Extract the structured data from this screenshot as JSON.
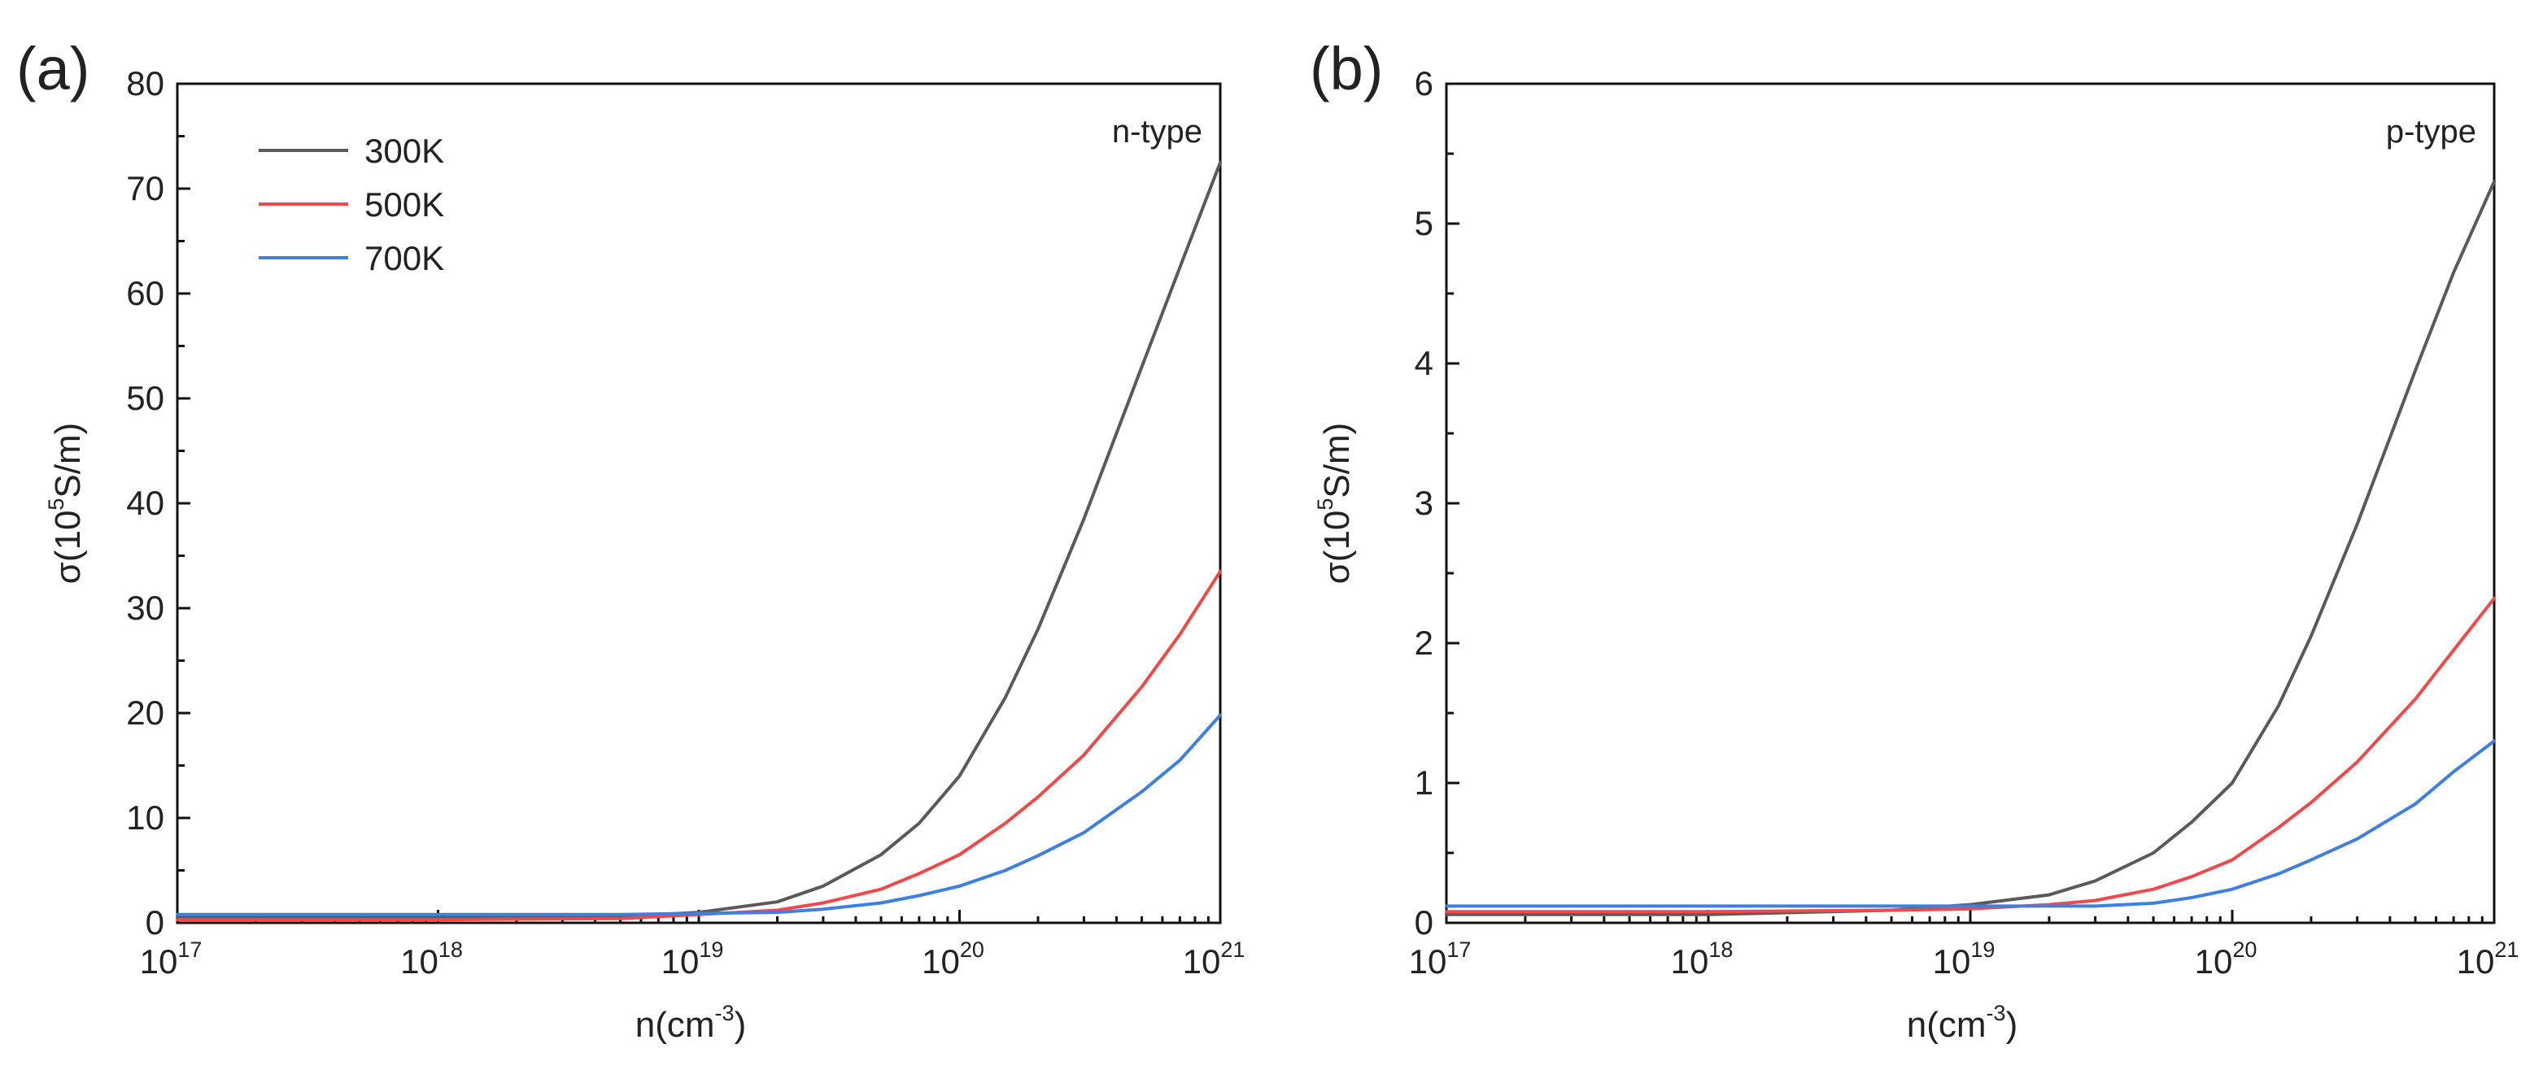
{
  "chart_data": [
    {
      "type": "line",
      "panel_label": "(a)",
      "annotation": "n-type",
      "xscale": "log",
      "xlabel": "n(cm",
      "xlabel_sup": "-3",
      "xlabel_close": ")",
      "ylabel": "σ(10",
      "ylabel_sup": "5",
      "ylabel_tail": "S/m)",
      "xlim": [
        1e+17,
        1e+21
      ],
      "ylim": [
        0,
        80
      ],
      "x_ticks": [
        {
          "base": "10",
          "exp": "17"
        },
        {
          "base": "10",
          "exp": "18"
        },
        {
          "base": "10",
          "exp": "19"
        },
        {
          "base": "10",
          "exp": "20"
        },
        {
          "base": "10",
          "exp": "21"
        }
      ],
      "y_ticks": [
        "0",
        "10",
        "20",
        "30",
        "40",
        "50",
        "60",
        "70",
        "80"
      ],
      "legend": {
        "position": "top-left"
      },
      "x": [
        1e+17,
        1e+18,
        5e+18,
        1e+19,
        2e+19,
        3e+19,
        5e+19,
        7e+19,
        1e+20,
        1.5e+20,
        2e+20,
        3e+20,
        5e+20,
        7e+20,
        1e+21
      ],
      "series": [
        {
          "name": "300K",
          "color": "#5a5a5a",
          "values": [
            0.5,
            0.5,
            0.6,
            1.0,
            2.0,
            3.5,
            6.5,
            9.5,
            14.0,
            21.5,
            28.0,
            38.5,
            53.0,
            62.5,
            72.5
          ]
        },
        {
          "name": "500K",
          "color": "#f0494a",
          "values": [
            0.3,
            0.3,
            0.4,
            0.8,
            1.2,
            1.9,
            3.2,
            4.7,
            6.5,
            9.5,
            12.0,
            16.0,
            22.5,
            27.5,
            33.5
          ]
        },
        {
          "name": "700K",
          "color": "#3f7fe0",
          "values": [
            0.8,
            0.8,
            0.8,
            0.9,
            1.0,
            1.3,
            1.9,
            2.6,
            3.5,
            5.0,
            6.4,
            8.6,
            12.5,
            15.5,
            19.8
          ]
        }
      ]
    },
    {
      "type": "line",
      "panel_label": "(b)",
      "annotation": "p-type",
      "xscale": "log",
      "xlabel": "n(cm",
      "xlabel_sup": "-3",
      "xlabel_close": ")",
      "ylabel": "σ(10",
      "ylabel_sup": "5",
      "ylabel_tail": "S/m)",
      "xlim": [
        1e+17,
        1e+21
      ],
      "ylim": [
        0,
        6
      ],
      "x_ticks": [
        {
          "base": "10",
          "exp": "17"
        },
        {
          "base": "10",
          "exp": "18"
        },
        {
          "base": "10",
          "exp": "19"
        },
        {
          "base": "10",
          "exp": "20"
        },
        {
          "base": "10",
          "exp": "21"
        }
      ],
      "y_ticks": [
        "0",
        "1",
        "2",
        "3",
        "4",
        "5",
        "6"
      ],
      "legend": {
        "position": "none"
      },
      "x": [
        1e+17,
        1e+18,
        5e+18,
        1e+19,
        2e+19,
        3e+19,
        5e+19,
        7e+19,
        1e+20,
        1.5e+20,
        2e+20,
        3e+20,
        5e+20,
        7e+20,
        1e+21
      ],
      "series": [
        {
          "name": "300K",
          "color": "#5a5a5a",
          "values": [
            0.06,
            0.06,
            0.09,
            0.13,
            0.2,
            0.3,
            0.5,
            0.72,
            1.0,
            1.55,
            2.05,
            2.85,
            3.95,
            4.65,
            5.3
          ]
        },
        {
          "name": "500K",
          "color": "#f0494a",
          "values": [
            0.08,
            0.08,
            0.09,
            0.1,
            0.13,
            0.16,
            0.24,
            0.33,
            0.45,
            0.68,
            0.86,
            1.15,
            1.6,
            1.95,
            2.32
          ]
        },
        {
          "name": "700K",
          "color": "#3f7fe0",
          "values": [
            0.12,
            0.12,
            0.12,
            0.12,
            0.12,
            0.12,
            0.14,
            0.18,
            0.24,
            0.35,
            0.45,
            0.6,
            0.85,
            1.08,
            1.3
          ]
        }
      ]
    }
  ]
}
